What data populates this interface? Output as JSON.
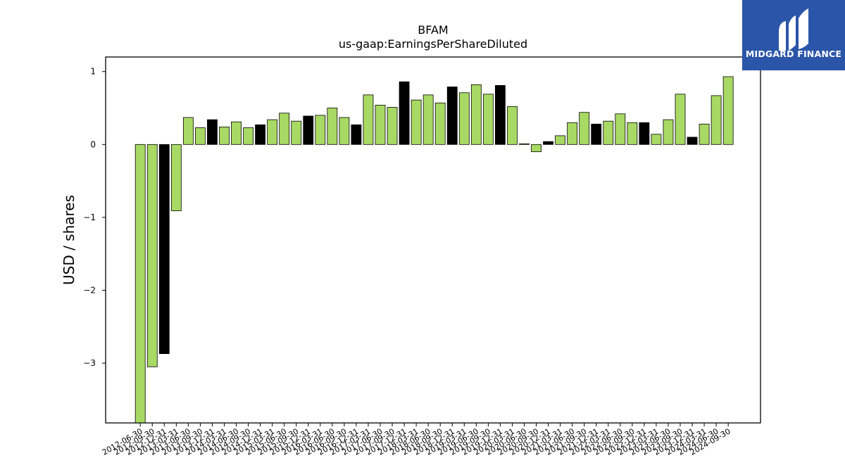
{
  "brand": {
    "name": "MIDGARD FINANCE",
    "background": "#2b55a8"
  },
  "chart_data": {
    "type": "bar",
    "title": "BFAM",
    "subtitle": "us-gaap:EarningsPerShareDiluted",
    "ylabel": "USD / shares",
    "xlabel": "",
    "ylim": [
      -3.82,
      1.2
    ],
    "yticks": [
      1,
      0,
      -1,
      -2,
      -3
    ],
    "ytick_labels": [
      "1",
      "0",
      "−1",
      "−2",
      "−3"
    ],
    "grid": false,
    "legend": "none",
    "colors": {
      "default": "#a8d964",
      "highlight": "#000000"
    },
    "categories": [
      "2012-06-30",
      "2012-09-30",
      "2012-12-31",
      "2013-03-31",
      "2013-06-30",
      "2013-09-30",
      "2013-12-31",
      "2014-03-31",
      "2014-06-30",
      "2014-09-30",
      "2014-12-31",
      "2015-03-31",
      "2015-06-30",
      "2015-09-30",
      "2015-12-31",
      "2016-03-31",
      "2016-06-30",
      "2016-09-30",
      "2016-12-31",
      "2017-03-31",
      "2017-06-30",
      "2017-09-30",
      "2017-12-31",
      "2018-03-31",
      "2018-06-30",
      "2018-09-30",
      "2018-12-31",
      "2019-03-31",
      "2019-06-30",
      "2019-09-30",
      "2019-12-31",
      "2020-03-31",
      "2020-06-30",
      "2020-09-30",
      "2020-12-31",
      "2021-03-31",
      "2021-06-30",
      "2021-09-30",
      "2021-12-31",
      "2022-03-31",
      "2022-06-30",
      "2022-09-30",
      "2022-12-31",
      "2023-03-31",
      "2023-06-30",
      "2023-09-30",
      "2023-12-31",
      "2024-03-31",
      "2024-06-30",
      "2024-09-30"
    ],
    "values": [
      -3.9,
      -3.05,
      -2.87,
      -0.91,
      0.37,
      0.23,
      0.34,
      0.24,
      0.31,
      0.23,
      0.27,
      0.34,
      0.43,
      0.32,
      0.39,
      0.4,
      0.5,
      0.37,
      0.27,
      0.68,
      0.54,
      0.51,
      0.86,
      0.61,
      0.68,
      0.57,
      0.79,
      0.71,
      0.82,
      0.69,
      0.81,
      0.52,
      0.01,
      -0.1,
      0.04,
      0.12,
      0.3,
      0.44,
      0.28,
      0.32,
      0.42,
      0.3,
      0.3,
      0.14,
      0.34,
      0.69,
      0.1,
      0.28,
      0.67,
      0.93
    ],
    "highlight": [
      false,
      false,
      true,
      false,
      false,
      false,
      true,
      false,
      false,
      false,
      true,
      false,
      false,
      false,
      true,
      false,
      false,
      false,
      true,
      false,
      false,
      false,
      true,
      false,
      false,
      false,
      true,
      false,
      false,
      false,
      true,
      false,
      false,
      false,
      true,
      false,
      false,
      false,
      true,
      false,
      false,
      false,
      true,
      false,
      false,
      false,
      true,
      false,
      false,
      false
    ]
  }
}
